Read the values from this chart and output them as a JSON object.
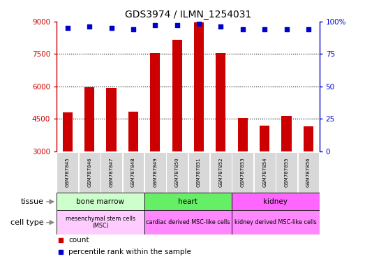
{
  "title": "GDS3974 / ILMN_1254031",
  "samples": [
    "GSM787845",
    "GSM787846",
    "GSM787847",
    "GSM787848",
    "GSM787849",
    "GSM787850",
    "GSM787851",
    "GSM787852",
    "GSM787853",
    "GSM787854",
    "GSM787855",
    "GSM787856"
  ],
  "counts": [
    4800,
    5950,
    5930,
    4820,
    7550,
    8150,
    8950,
    7530,
    4550,
    4200,
    4630,
    4150
  ],
  "percentile_ranks": [
    95,
    96,
    95,
    94,
    97,
    97,
    98,
    96,
    94,
    94,
    94,
    94
  ],
  "ymin": 3000,
  "ymax": 9000,
  "yticks": [
    3000,
    4500,
    6000,
    7500,
    9000
  ],
  "right_yticks": [
    0,
    25,
    50,
    75,
    100
  ],
  "right_ytick_labels": [
    "0",
    "25",
    "50",
    "75",
    "100%"
  ],
  "bar_color": "#cc0000",
  "dot_color": "#0000cc",
  "tissue_groups": [
    {
      "label": "bone marrow",
      "start": 0,
      "end": 3,
      "color": "#ccffcc"
    },
    {
      "label": "heart",
      "start": 4,
      "end": 7,
      "color": "#66ee66"
    },
    {
      "label": "kidney",
      "start": 8,
      "end": 11,
      "color": "#ff66ff"
    }
  ],
  "cell_type_groups": [
    {
      "label": "mesenchymal stem cells\n(MSC)",
      "start": 0,
      "end": 3,
      "color": "#ffccff"
    },
    {
      "label": "cardiac derived MSC-like cells",
      "start": 4,
      "end": 7,
      "color": "#ff88ff"
    },
    {
      "label": "kidney derived MSC-like cells",
      "start": 8,
      "end": 11,
      "color": "#ff88ff"
    }
  ],
  "legend_count_color": "#cc0000",
  "legend_percentile_color": "#0000cc",
  "tissue_label": "tissue",
  "cell_type_label": "cell type",
  "background_color": "#ffffff",
  "grid_dotted_values": [
    4500,
    6000,
    7500
  ]
}
